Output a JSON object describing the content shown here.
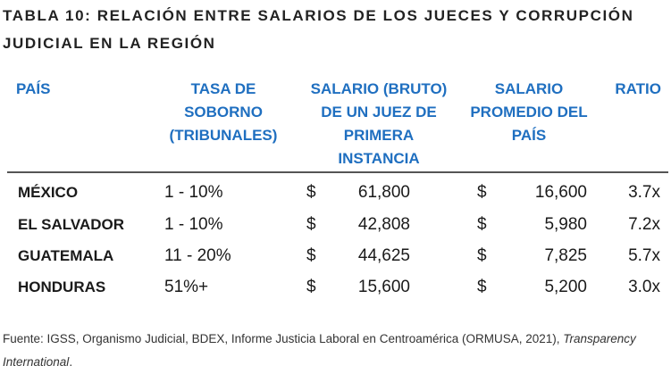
{
  "title": "TABLA 10: RELACIÓN ENTRE SALARIOS DE LOS JUECES Y CORRUPCIÓN JUDICIAL EN LA REGIÓN",
  "headers": {
    "pais": "PAÍS",
    "tasa": "TASA DE SOBORNO (TRIBUNALES)",
    "salario_juez": "SALARIO (BRUTO) DE UN JUEZ DE PRIMERA INSTANCIA",
    "salario_promedio": "SALARIO PROMEDIO DEL PAÍS",
    "ratio": "RATIO"
  },
  "rows": [
    {
      "pais": "MÉXICO",
      "tasa": "1 - 10%",
      "cur1": "$",
      "salario_juez": "61,800",
      "cur2": "$",
      "salario_promedio": "16,600",
      "ratio": "3.7x"
    },
    {
      "pais": "EL SALVADOR",
      "tasa": "1 - 10%",
      "cur1": "$",
      "salario_juez": "42,808",
      "cur2": "$",
      "salario_promedio": "5,980",
      "ratio": "7.2x"
    },
    {
      "pais": "GUATEMALA",
      "tasa": "11 - 20%",
      "cur1": "$",
      "salario_juez": "44,625",
      "cur2": "$",
      "salario_promedio": "7,825",
      "ratio": "5.7x"
    },
    {
      "pais": "HONDURAS",
      "tasa": "51%+",
      "cur1": "$",
      "salario_juez": "15,600",
      "cur2": "$",
      "salario_promedio": "5,200",
      "ratio": "3.0x"
    }
  ],
  "source": {
    "text": "Fuente: IGSS, Organismo Judicial, BDEX, Informe Justicia Laboral en Centroamérica (ORMUSA, 2021), ",
    "italic": "Transparency International",
    "end": "."
  }
}
